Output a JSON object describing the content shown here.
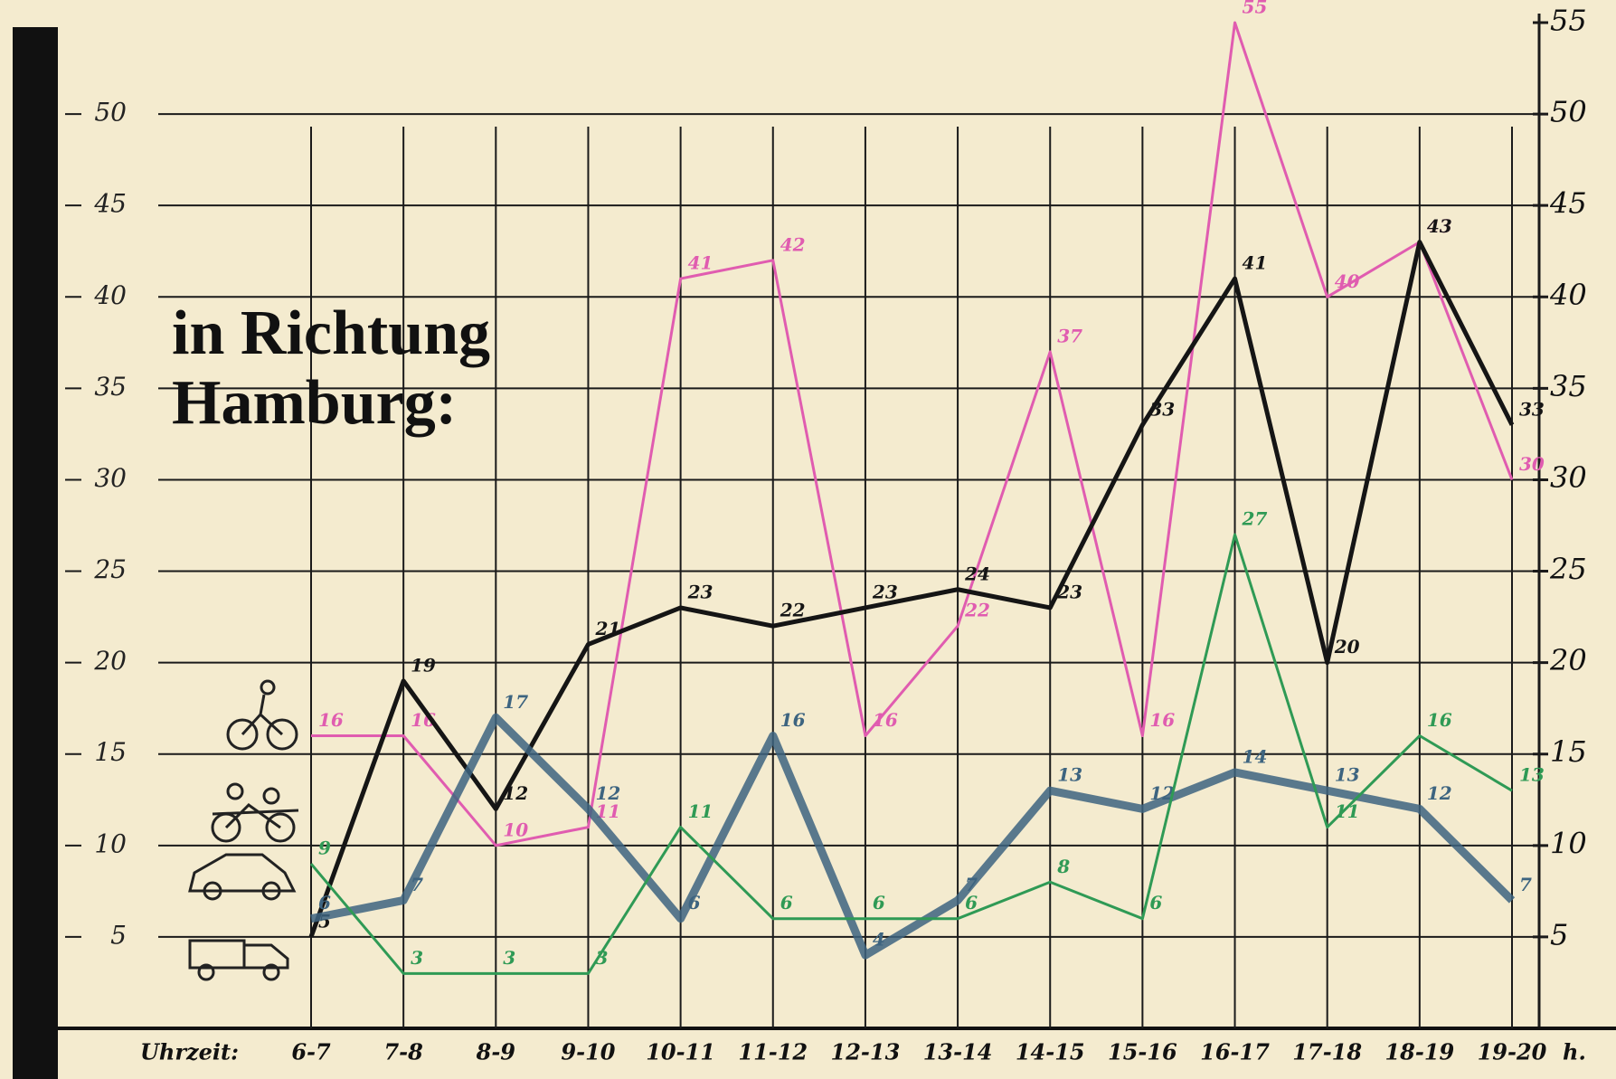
{
  "chart_data": {
    "type": "line",
    "title": "in Richtung Hamburg:",
    "x_label": "Uhrzeit:",
    "x_unit": "h.",
    "categories": [
      "6-7",
      "7-8",
      "8-9",
      "9-10",
      "10-11",
      "11-12",
      "12-13",
      "13-14",
      "14-15",
      "15-16",
      "16-17",
      "17-18",
      "18-19",
      "19-20"
    ],
    "series": [
      {
        "color": "#e05cb0",
        "values": [
          16,
          16,
          10,
          11,
          41,
          42,
          16,
          22,
          37,
          16,
          55,
          40,
          43,
          30
        ]
      },
      {
        "color": "#151515",
        "values": [
          5,
          19,
          12,
          21,
          23,
          22,
          23,
          24,
          23,
          33,
          41,
          20,
          43,
          33
        ]
      },
      {
        "color": "#3d6480",
        "values": [
          6,
          7,
          17,
          12,
          6,
          16,
          4,
          7,
          13,
          12,
          14,
          13,
          12,
          7
        ]
      },
      {
        "color": "#2f9a55",
        "values": [
          9,
          3,
          3,
          3,
          11,
          6,
          6,
          6,
          8,
          6,
          27,
          11,
          16,
          13
        ]
      }
    ],
    "ylim": [
      0,
      55
    ],
    "yticks": [
      5,
      10,
      15,
      20,
      25,
      30,
      35,
      40,
      45,
      50
    ],
    "y2lim": [
      0,
      55
    ],
    "y2ticks": [
      5,
      10,
      15,
      20,
      25,
      30,
      35,
      40,
      45,
      50,
      55
    ],
    "grid": true
  }
}
